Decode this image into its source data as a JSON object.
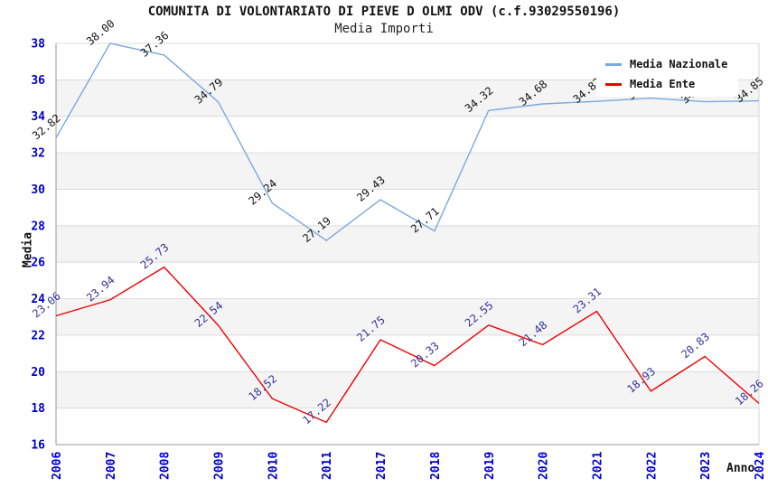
{
  "chart_data": {
    "type": "line",
    "title": "COMUNITA DI VOLONTARIATO DI PIEVE D OLMI ODV (c.f.93029550196)",
    "subtitle": "Media Importi",
    "xlabel": "Anno",
    "ylabel": "Media",
    "categories": [
      "2006",
      "2007",
      "2008",
      "2009",
      "2010",
      "2011",
      "2017",
      "2018",
      "2019",
      "2020",
      "2021",
      "2022",
      "2023",
      "2024"
    ],
    "series": [
      {
        "name": "Media Nazionale",
        "color": "#7aa8e0",
        "label_color": "#111111",
        "values": [
          32.82,
          38.0,
          37.36,
          34.79,
          29.24,
          27.19,
          29.43,
          27.71,
          34.32,
          34.68,
          34.82,
          35.0,
          34.8,
          34.85
        ],
        "labels": [
          "32.82",
          "38.00",
          "37.36",
          "34.79",
          "29.24",
          "27.19",
          "29.43",
          "27.71",
          "34.32",
          "34.68",
          "34.82",
          "35.00",
          "34.80",
          "34.85"
        ]
      },
      {
        "name": "Media Ente",
        "color": "#f00000",
        "label_color": "#333399",
        "values": [
          23.06,
          23.94,
          25.73,
          22.54,
          18.52,
          17.22,
          21.75,
          20.33,
          22.55,
          21.48,
          23.31,
          18.93,
          20.83,
          18.26
        ],
        "labels": [
          "23.06",
          "23.94",
          "25.73",
          "22.54",
          "18.52",
          "17.22",
          "21.75",
          "20.33",
          "22.55",
          "21.48",
          "23.31",
          "18.93",
          "20.83",
          "18.26"
        ]
      }
    ],
    "ylim": [
      16,
      38
    ],
    "yticks": [
      38,
      36,
      34,
      32,
      30,
      28,
      26,
      24,
      22,
      20,
      18,
      16
    ],
    "grid": "horizontal",
    "band_color": "#f4f4f4",
    "gridline_color": "#dcdcdc",
    "axis_color": "#999999",
    "tick_label_color": "#0000cc",
    "legend_position": "top-right"
  }
}
